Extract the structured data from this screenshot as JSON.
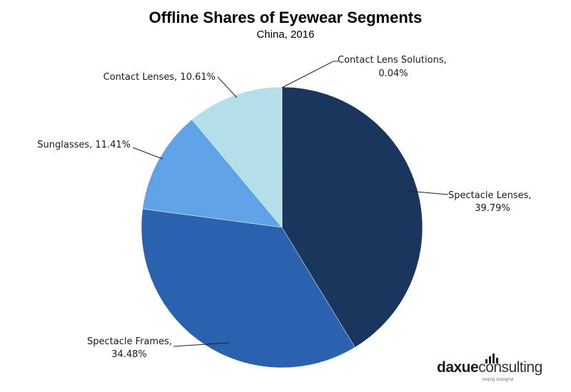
{
  "chart_data": {
    "type": "pie",
    "title": "Offline Shares of Eyewear Segments",
    "subtitle": "China, 2016",
    "slices": [
      {
        "name": "Spectacle Lenses",
        "value": 39.79,
        "label_line1": "Spectacle Lenses,",
        "label_line2": "39.79%",
        "color": "#1b365d"
      },
      {
        "name": "Spectacle Frames",
        "value": 34.48,
        "label_line1": "Spectacle Frames,",
        "label_line2": "34.48%",
        "color": "#2a62ae"
      },
      {
        "name": "Sunglasses",
        "value": 11.41,
        "label_line1": "Sunglasses, 11.41%",
        "label_line2": "",
        "color": "#5fa3e6"
      },
      {
        "name": "Contact Lenses",
        "value": 10.61,
        "label_line1": "Contact Lenses, 10.61%",
        "label_line2": "",
        "color": "#b3e0e8"
      },
      {
        "name": "Contact Lens Solutions",
        "value": 0.04,
        "label_line1": "Contact Lens Solutions,",
        "label_line2": "0.04%",
        "color": "#8fd0df"
      }
    ],
    "start_angle_deg": 0,
    "direction": "clockwise",
    "legend": "none"
  },
  "branding": {
    "logo_part1": "daxue",
    "logo_part2": "consulting",
    "logo_tagline": "beijing shanghai"
  }
}
